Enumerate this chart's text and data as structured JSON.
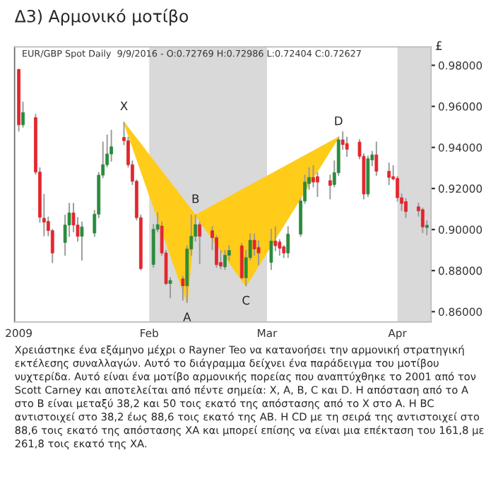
{
  "chart_data": {
    "type": "candlestick",
    "title": "Δ3) Αρμονικό μοτίβο",
    "subtitle": "EUR/GBP Spot Daily  9/9/2016 - O:0.72769 H:0.72986 L:0.72404 C:0.72627",
    "ylabel": "£",
    "x": [
      "2009-01-01",
      "2009-01-02",
      "2009-01-05",
      "2009-01-06",
      "2009-01-07",
      "2009-01-08",
      "2009-01-09",
      "2009-01-12",
      "2009-01-13",
      "2009-01-14",
      "2009-01-15",
      "2009-01-16",
      "2009-01-19",
      "2009-01-20",
      "2009-01-21",
      "2009-01-22",
      "2009-01-23",
      "2009-01-26",
      "2009-01-27",
      "2009-01-28",
      "2009-01-29",
      "2009-01-30",
      "2009-02-02",
      "2009-02-03",
      "2009-02-04",
      "2009-02-05",
      "2009-02-06",
      "2009-02-09",
      "2009-02-10",
      "2009-02-11",
      "2009-02-12",
      "2009-02-13",
      "2009-02-16",
      "2009-02-17",
      "2009-02-18",
      "2009-02-19",
      "2009-02-20",
      "2009-02-23",
      "2009-02-24",
      "2009-02-25",
      "2009-02-26",
      "2009-02-27",
      "2009-03-02",
      "2009-03-03",
      "2009-03-04",
      "2009-03-05",
      "2009-03-06",
      "2009-03-09",
      "2009-03-10",
      "2009-03-11",
      "2009-03-12",
      "2009-03-13",
      "2009-03-16",
      "2009-03-17",
      "2009-03-18",
      "2009-03-19",
      "2009-03-20",
      "2009-03-23",
      "2009-03-24",
      "2009-03-25",
      "2009-03-26",
      "2009-03-27",
      "2009-03-30",
      "2009-03-31",
      "2009-04-01",
      "2009-04-02",
      "2009-04-03",
      "2009-04-06",
      "2009-04-07",
      "2009-04-08"
    ],
    "ohlc": [
      [
        0.978,
        0.978,
        0.948,
        0.951
      ],
      [
        0.951,
        0.962,
        0.95,
        0.957
      ],
      [
        0.9545,
        0.956,
        0.927,
        0.928
      ],
      [
        0.928,
        0.93,
        0.9036,
        0.906
      ],
      [
        0.9055,
        0.917,
        0.897,
        0.9036
      ],
      [
        0.904,
        0.906,
        0.897,
        0.8995
      ],
      [
        0.8995,
        0.9,
        0.884,
        0.8886
      ],
      [
        0.8937,
        0.907,
        0.8875,
        0.9022
      ],
      [
        0.9022,
        0.9127,
        0.8967,
        0.9081
      ],
      [
        0.9081,
        0.9127,
        0.899,
        0.9022
      ],
      [
        0.9022,
        0.9058,
        0.8944,
        0.8967
      ],
      [
        0.8967,
        0.9036,
        0.8852,
        0.9013
      ],
      [
        0.8983,
        0.9093,
        0.8967,
        0.9075
      ],
      [
        0.9075,
        0.9277,
        0.9058,
        0.9265
      ],
      [
        0.9265,
        0.9426,
        0.9254,
        0.9316
      ],
      [
        0.9316,
        0.946,
        0.9306,
        0.9368
      ],
      [
        0.9368,
        0.9483,
        0.9334,
        0.9403
      ],
      [
        0.9449,
        0.9522,
        0.9414,
        0.9433
      ],
      [
        0.9433,
        0.9449,
        0.9305,
        0.9316
      ],
      [
        0.9316,
        0.9334,
        0.9219,
        0.9235
      ],
      [
        0.9235,
        0.9242,
        0.9047,
        0.9058
      ],
      [
        0.9058,
        0.907,
        0.8805,
        0.881
      ],
      [
        0.883,
        0.9024,
        0.8817,
        0.9001
      ],
      [
        0.9001,
        0.9081,
        0.899,
        0.9024
      ],
      [
        0.9017,
        0.9036,
        0.8875,
        0.8886
      ],
      [
        0.8886,
        0.8898,
        0.8732,
        0.8737
      ],
      [
        0.8737,
        0.8765,
        0.8668,
        0.8752
      ],
      [
        0.876,
        0.8772,
        0.8657,
        0.8726
      ],
      [
        0.8726,
        0.8921,
        0.8645,
        0.8905
      ],
      [
        0.8905,
        0.907,
        0.8875,
        0.8967
      ],
      [
        0.8967,
        0.907,
        0.8944,
        0.9024
      ],
      [
        0.9024,
        0.9036,
        0.8834,
        0.8967
      ],
      [
        0.8994,
        0.9013,
        0.8903,
        0.896
      ],
      [
        0.896,
        0.8971,
        0.8817,
        0.8829
      ],
      [
        0.884,
        0.8898,
        0.881,
        0.8822
      ],
      [
        0.8818,
        0.8898,
        0.8806,
        0.8875
      ],
      [
        0.8875,
        0.8921,
        0.8852,
        0.8898
      ],
      [
        0.8921,
        0.8932,
        0.876,
        0.8765
      ],
      [
        0.8765,
        0.8898,
        0.8726,
        0.8863
      ],
      [
        0.8863,
        0.8978,
        0.8852,
        0.8948
      ],
      [
        0.8948,
        0.8978,
        0.8875,
        0.8905
      ],
      [
        0.8913,
        0.8944,
        0.8829,
        0.8886
      ],
      [
        0.884,
        0.9001,
        0.8806,
        0.8944
      ],
      [
        0.8944,
        0.9013,
        0.8898,
        0.8921
      ],
      [
        0.8939,
        0.895,
        0.8875,
        0.8909
      ],
      [
        0.8916,
        0.8921,
        0.8864,
        0.8886
      ],
      [
        0.8886,
        0.9013,
        0.8864,
        0.8978
      ],
      [
        0.8978,
        0.9151,
        0.8967,
        0.9139
      ],
      [
        0.9139,
        0.9265,
        0.9128,
        0.9231
      ],
      [
        0.9224,
        0.93,
        0.9196,
        0.9254
      ],
      [
        0.9254,
        0.9311,
        0.9208,
        0.9231
      ],
      [
        0.9258,
        0.9277,
        0.9162,
        0.9231
      ],
      [
        0.9238,
        0.9265,
        0.915,
        0.9215
      ],
      [
        0.9219,
        0.9334,
        0.9208,
        0.9277
      ],
      [
        0.9277,
        0.9449,
        0.9265,
        0.9437
      ],
      [
        0.9437,
        0.9476,
        0.9391,
        0.9414
      ],
      [
        0.9419,
        0.9449,
        0.9357,
        0.9391
      ],
      [
        0.9426,
        0.9437,
        0.9346,
        0.9357
      ],
      [
        0.9357,
        0.9368,
        0.915,
        0.9173
      ],
      [
        0.9173,
        0.9357,
        0.9162,
        0.9345
      ],
      [
        0.9339,
        0.938,
        0.9311,
        0.9364
      ],
      [
        0.9364,
        0.9426,
        0.9265,
        0.9284
      ],
      [
        0.9284,
        0.9323,
        0.9219,
        0.9254
      ],
      [
        0.9258,
        0.9311,
        0.9242,
        0.9247
      ],
      [
        0.9249,
        0.9258,
        0.9139,
        0.9155
      ],
      [
        0.9155,
        0.9173,
        0.9093,
        0.9127
      ],
      [
        0.9136,
        0.915,
        0.9059,
        0.9088
      ],
      [
        0.9111,
        0.9128,
        0.9066,
        0.9091
      ],
      [
        0.9097,
        0.9104,
        0.8985,
        0.9013
      ],
      [
        0.901,
        0.9042,
        0.8975,
        0.9021
      ]
    ],
    "colors": [
      "#e3262e",
      "#2a8a3c",
      "#e3262e",
      "#e3262e",
      "#e3262e",
      "#e3262e",
      "#e3262e",
      "#2a8a3c",
      "#2a8a3c",
      "#e3262e",
      "#e3262e",
      "#2a8a3c",
      "#2a8a3c",
      "#2a8a3c",
      "#2a8a3c",
      "#2a8a3c",
      "#2a8a3c",
      "#e3262e",
      "#e3262e",
      "#e3262e",
      "#e3262e",
      "#e3262e",
      "#2a8a3c",
      "#2a8a3c",
      "#e3262e",
      "#e3262e",
      "#2a8a3c",
      "#e3262e",
      "#2a8a3c",
      "#2a8a3c",
      "#2a8a3c",
      "#e3262e",
      "#e3262e",
      "#e3262e",
      "#e3262e",
      "#2a8a3c",
      "#2a8a3c",
      "#e3262e",
      "#2a8a3c",
      "#2a8a3c",
      "#e3262e",
      "#e3262e",
      "#2a8a3c",
      "#e3262e",
      "#e3262e",
      "#e3262e",
      "#2a8a3c",
      "#2a8a3c",
      "#2a8a3c",
      "#2a8a3c",
      "#e3262e",
      "#e3262e",
      "#e3262e",
      "#2a8a3c",
      "#2a8a3c",
      "#e3262e",
      "#e3262e",
      "#e3262e",
      "#e3262e",
      "#2a8a3c",
      "#2a8a3c",
      "#e3262e",
      "#e3262e",
      "#e3262e",
      "#e3262e",
      "#e3262e",
      "#e3262e",
      "#e3262e",
      "#e3262e",
      "#2a8a3c"
    ],
    "xlim": [
      "2008-12-31",
      "2009-04-09"
    ],
    "series": [
      {
        "type": "area",
        "x": [
          "2009-01-26",
          "2009-02-10",
          "2009-02-12",
          "2009-02-24",
          "2009-03-18"
        ],
        "values": [
          0.9522,
          0.8645,
          0.907,
          0.8726,
          0.9449
        ],
        "color": "#ffcc1a"
      }
    ],
    "annotations": [
      {
        "text": "X",
        "x": "2009-01-26",
        "y": 0.9522
      },
      {
        "text": "A",
        "x": "2009-02-10",
        "y": 0.8645
      },
      {
        "text": "B",
        "x": "2009-02-12",
        "y": 0.907
      },
      {
        "text": "C",
        "x": "2009-02-24",
        "y": 0.8726
      },
      {
        "text": "D",
        "x": "2009-03-18",
        "y": 0.9449
      },
      "Χρειάστηκε ένα εξάμηνο μέχρι ο Rayner Teo να κατανοήσει την αρμονική στρατηγική εκτέλεσης συναλλαγών. Αυτό το διάγραμμα δείχνει ένα παράδειγμα του μοτίβου νυχτερίδα. Αυτό είναι ένα μοτίβο αρμονικής πορείας που αναπτύχθηκε το 2001 από τον Scott Carney και αποτελείται από πέντε σημεία: X, A, B, C και D. Η απόσταση από το A στο B είναι μεταξύ 38,2 και 50 τοις εκατό της απόστασης από το X στο A. Η BC αντιστοιχεί στο 38,2 έως 88,6 τοις εκατό της AB. Η CD με τη σειρά της αντιστοιχεί στο 88,6 τοις εκατό της απόστασης XA και μπορεί επίσης να είναι μια επέκταση του 161,8 με 261,8 τοις εκατό της XA."
    ],
    "bands": [
      {
        "axis": "x",
        "from": "2009-02-01",
        "to": "2009-03-01",
        "color": "#d9d9d9"
      },
      {
        "axis": "x",
        "from": "2009-04-01",
        "to": "2009-04-09",
        "color": "#d9d9d9"
      }
    ],
    "xticks": [
      {
        "value": "2009-01-01",
        "label": "2009"
      },
      {
        "value": "2009-02-01",
        "label": "Feb"
      },
      {
        "value": "2009-03-01",
        "label": "Mar"
      },
      {
        "value": "2009-04-01",
        "label": "Apr"
      }
    ],
    "ylim": [
      0.855,
      0.989
    ],
    "yticks": [
      {
        "value": 0.86,
        "label": "0.86000"
      },
      {
        "value": 0.88,
        "label": "0.88000"
      },
      {
        "value": 0.9,
        "label": "0.90000"
      },
      {
        "value": 0.92,
        "label": "0.92000"
      },
      {
        "value": 0.94,
        "label": "0.94000"
      },
      {
        "value": 0.96,
        "label": "0.96000"
      },
      {
        "value": 0.98,
        "label": "0.98000"
      }
    ],
    "grid": false
  }
}
